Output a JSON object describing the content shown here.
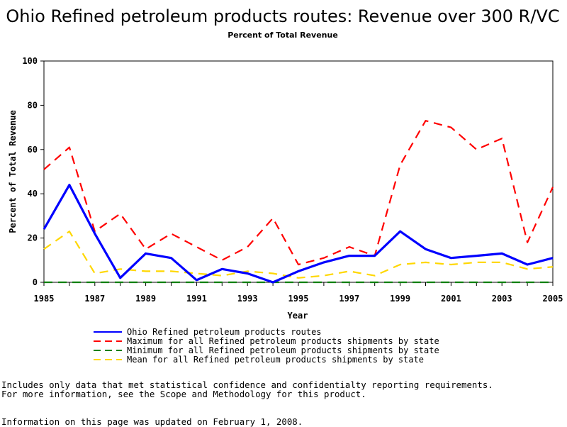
{
  "chart_data": {
    "type": "line",
    "title": "Ohio Refined petroleum products routes: Revenue over 300 R/VC",
    "subtitle": "Percent of Total Revenue",
    "xlabel": "Year",
    "ylabel": "Percent of Total Revenue",
    "xlim": [
      1985,
      2005
    ],
    "ylim": [
      0,
      100
    ],
    "x_ticks": [
      1985,
      1987,
      1989,
      1991,
      1993,
      1995,
      1997,
      1999,
      2001,
      2003,
      2005
    ],
    "y_ticks": [
      0,
      20,
      40,
      60,
      80,
      100
    ],
    "grid": false,
    "legend_position": "bottom",
    "x": [
      1985,
      1986,
      1987,
      1988,
      1989,
      1990,
      1991,
      1992,
      1993,
      1994,
      1995,
      1996,
      1997,
      1998,
      1999,
      2000,
      2001,
      2002,
      2003,
      2004,
      2005
    ],
    "series": [
      {
        "name": "Ohio Refined petroleum products routes",
        "color": "#0000ff",
        "line_style": "solid",
        "values": [
          24,
          44,
          22,
          2,
          13,
          11,
          1,
          6,
          4,
          0,
          5,
          9,
          12,
          12,
          23,
          15,
          11,
          12,
          13,
          8,
          11
        ]
      },
      {
        "name": "Maximum for all Refined petroleum products shipments by state",
        "color": "#ff0000",
        "line_style": "dashed",
        "values": [
          51,
          61,
          23,
          31,
          15,
          22,
          16,
          10,
          16,
          29,
          8,
          11,
          16,
          12,
          53,
          73,
          70,
          60,
          65,
          18,
          43
        ]
      },
      {
        "name": "Minimum for all Refined petroleum products shipments by state",
        "color": "#008000",
        "line_style": "dashed",
        "values": [
          0,
          0,
          0,
          0,
          0,
          0,
          0,
          0,
          0,
          0,
          0,
          0,
          0,
          0,
          0,
          0,
          0,
          0,
          0,
          0,
          0
        ]
      },
      {
        "name": "Mean for all Refined petroleum products shipments by state",
        "color": "#ffd700",
        "line_style": "dashed",
        "values": [
          15,
          23,
          4,
          6,
          5,
          5,
          4,
          3,
          5,
          4,
          2,
          3,
          5,
          3,
          8,
          9,
          8,
          9,
          9,
          6,
          7
        ]
      }
    ]
  },
  "footnote": {
    "line1": "Includes only data that met statistical confidence and confidentialty reporting requirements.",
    "line2": "For more information, see the Scope and Methodology for this product.",
    "updated": "Information on this page was updated on February 1, 2008."
  }
}
